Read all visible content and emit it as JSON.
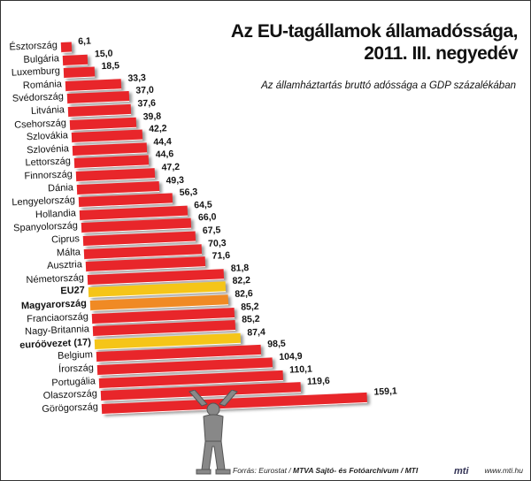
{
  "chart_data": {
    "type": "bar",
    "orientation": "horizontal",
    "title": "Az EU-tagállamok államadóssága, 2011. III. negyedév",
    "title_lines": [
      "Az EU-tagállamok államadóssága,",
      "2011. III. negyedév"
    ],
    "subtitle": "Az államháztartás bruttó adóssága a GDP százalékában",
    "categories": [
      "Észtország",
      "Bulgária",
      "Luxemburg",
      "Románia",
      "Svédország",
      "Litvánia",
      "Csehország",
      "Szlovákia",
      "Szlovénia",
      "Lettország",
      "Finnország",
      "Dánia",
      "Lengyelország",
      "Hollandia",
      "Spanyolország",
      "Ciprus",
      "Málta",
      "Ausztria",
      "Németország",
      "EU27",
      "Magyarország",
      "Franciaország",
      "Nagy-Britannia",
      "euróövezet (17)",
      "Belgium",
      "Írország",
      "Portugália",
      "Olaszország",
      "Görögország"
    ],
    "values": [
      6.1,
      15.0,
      18.5,
      33.3,
      37.0,
      37.6,
      39.8,
      42.2,
      44.4,
      44.6,
      47.2,
      49.3,
      56.3,
      64.5,
      66.0,
      67.5,
      70.3,
      71.6,
      81.8,
      82.2,
      82.6,
      85.2,
      85.2,
      87.4,
      98.5,
      104.9,
      110.1,
      119.6,
      159.1
    ],
    "value_labels": [
      "6,1",
      "15,0",
      "18,5",
      "33,3",
      "37,0",
      "37,6",
      "39,8",
      "42,2",
      "44,4",
      "44,6",
      "47,2",
      "49,3",
      "56,3",
      "64,5",
      "66,0",
      "67,5",
      "70,3",
      "71,6",
      "81,8",
      "82,2",
      "82,6",
      "85,2",
      "85,2",
      "87,4",
      "98,5",
      "104,9",
      "110,1",
      "119,6",
      "159,1"
    ],
    "highlight": {
      "EU27": "#f5c518",
      "Magyarország": "#f08a24",
      "euróövezet (17)": "#f5c518"
    },
    "bold_labels": [
      "EU27",
      "Magyarország",
      "euróövezet (17)"
    ],
    "bar_color": "#e8262a",
    "grid": false,
    "legend": "none"
  },
  "footer": {
    "source_prefix": "Forrás: Eurostat / ",
    "source_bold": "MTVA Sajtó- és Fotóarchívum / MTI",
    "logo": "mti",
    "url": "www.mti.hu"
  }
}
